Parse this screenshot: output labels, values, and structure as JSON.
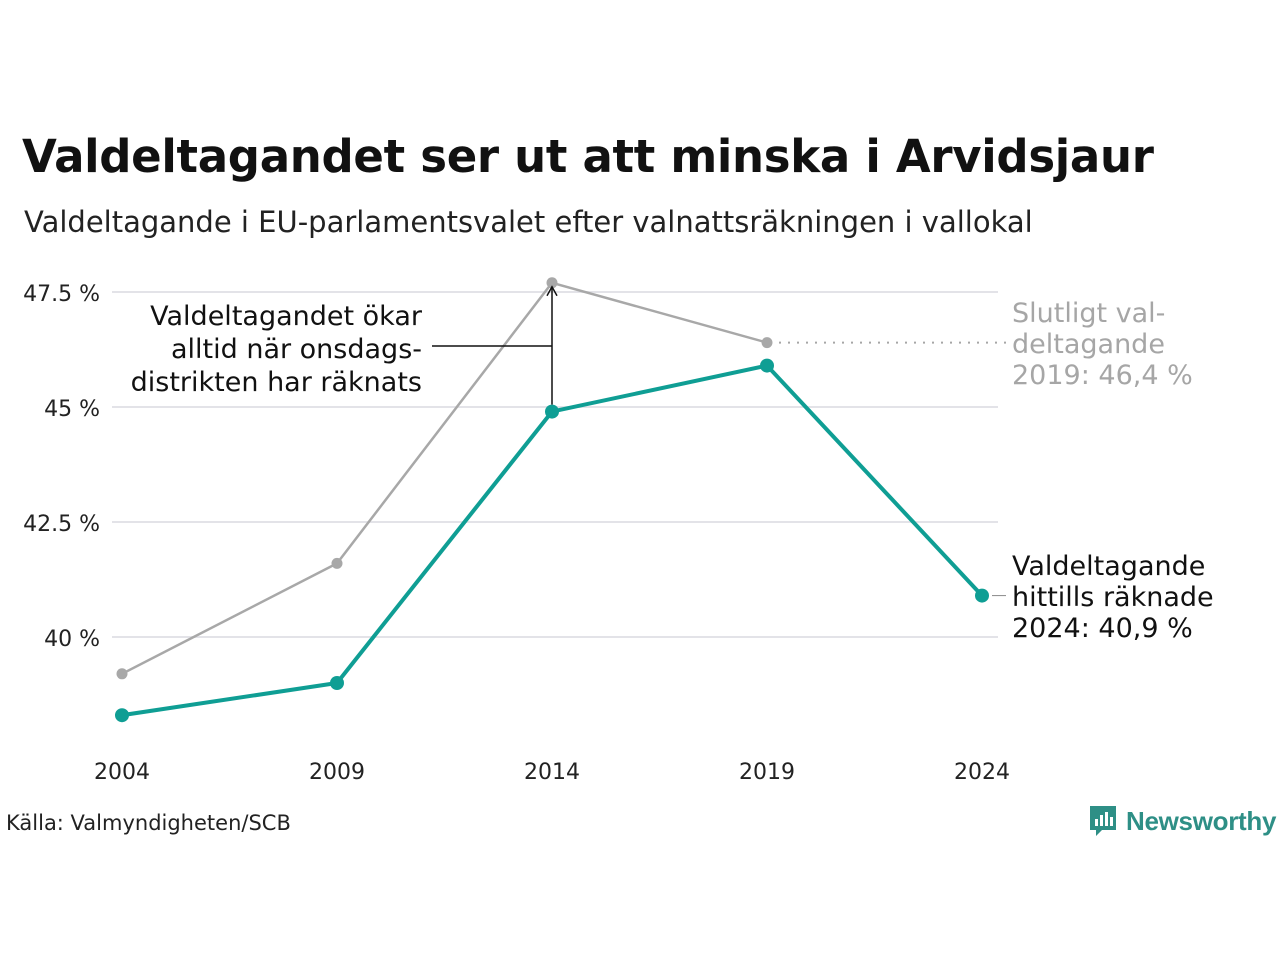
{
  "header": {
    "title": "Valdeltagandet ser ut att minska i Arvidsjaur",
    "subtitle": "Valdeltagande i EU-parlamentsvalet efter valnattsräkningen i vallokal"
  },
  "footer": {
    "source": "Källa: Valmyndigheten/SCB",
    "logo_text": "Newsworthy"
  },
  "colors": {
    "counted": "#0f9e94",
    "final": "#a8a8a8",
    "grid": "#e3e3e8",
    "annotation_dark": "#111111",
    "annotation_gray": "#a6a6a6",
    "brand": "#2e8f86"
  },
  "chart_data": {
    "type": "line",
    "x": [
      2004,
      2009,
      2014,
      2019,
      2024
    ],
    "xlim": [
      2004,
      2024
    ],
    "ylim": [
      37.6,
      47.8
    ],
    "yticks": [
      40,
      42.5,
      45,
      47.5
    ],
    "ytick_labels": [
      "40 %",
      "42.5 %",
      "45 %",
      "47.5 %"
    ],
    "xtick_labels": [
      "2004",
      "2009",
      "2014",
      "2019",
      "2024"
    ],
    "grid": true,
    "series": [
      {
        "key": "final",
        "values": [
          39.2,
          41.6,
          47.7,
          46.4,
          null
        ]
      },
      {
        "key": "counted",
        "values": [
          38.3,
          39.0,
          44.9,
          45.9,
          40.9
        ]
      }
    ],
    "annotations": {
      "increase": [
        "Valdeltagandet ökar",
        "alltid när onsdags-",
        "distrikten har räknats"
      ],
      "final_2019": [
        "Slutligt val-",
        "deltagande",
        "2019: 46,4 %"
      ],
      "counted_2024": [
        "Valdeltagande",
        "hittills räknade",
        "2024: 40,9 %"
      ]
    }
  }
}
